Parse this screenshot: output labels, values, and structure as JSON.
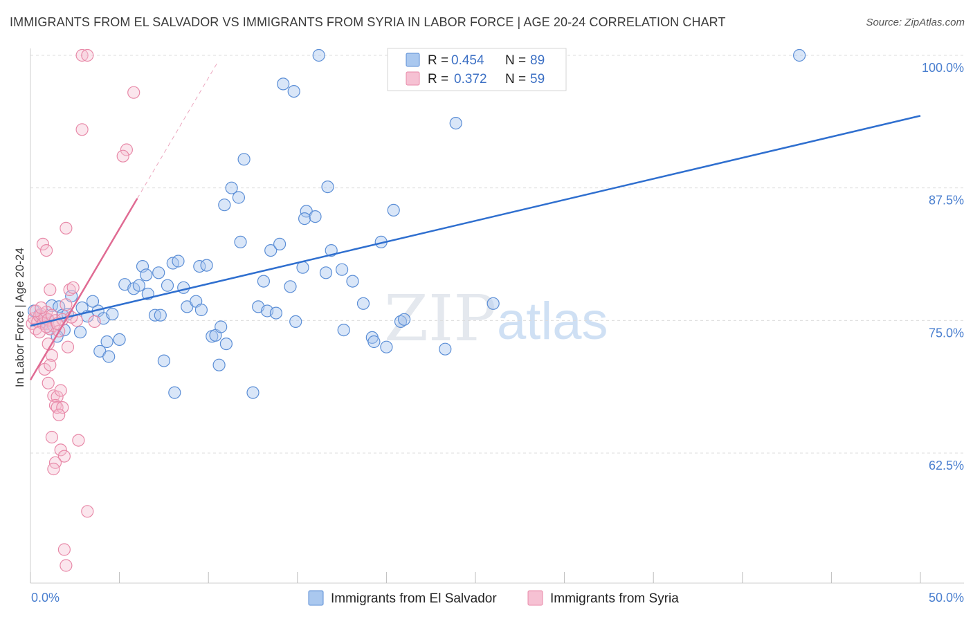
{
  "header": {
    "title": "IMMIGRANTS FROM EL SALVADOR VS IMMIGRANTS FROM SYRIA IN LABOR FORCE | AGE 20-24 CORRELATION CHART",
    "source": "Source: ZipAtlas.com"
  },
  "watermark": {
    "zip": "ZIP",
    "atlas": "atlas"
  },
  "colors": {
    "blue": "#5b8ed6",
    "blue_fill": "#aac8ef",
    "blue_line": "#2f6fcf",
    "pink": "#e889a8",
    "pink_fill": "#f6c1d3",
    "pink_line": "#e06b93",
    "grid": "#d9d9d9",
    "axis_text": "#4a7fcf"
  },
  "legend": {
    "rows": [
      {
        "r_label": "R =",
        "r_value": "0.454",
        "n_label": "N =",
        "n_value": "89"
      },
      {
        "r_label": "R =",
        "r_value": "0.372",
        "n_label": "N =",
        "n_value": "59"
      }
    ]
  },
  "chart_data": {
    "type": "scatter",
    "title": "IMMIGRANTS FROM EL SALVADOR VS IMMIGRANTS FROM SYRIA IN LABOR FORCE | AGE 20-24 CORRELATION CHART",
    "xlabel": "",
    "ylabel": "In Labor Force | Age 20-24",
    "xlim": [
      0,
      50
    ],
    "ylim": [
      50,
      101
    ],
    "x_tick_labels": [
      "0.0%",
      "50.0%"
    ],
    "y_ticks": [
      62.5,
      75.0,
      87.5,
      100.0
    ],
    "y_tick_labels": [
      "62.5%",
      "75.0%",
      "87.5%",
      "100.0%"
    ],
    "grid": true,
    "series": [
      {
        "name": "Immigrants from El Salvador",
        "color": "#5b8ed6",
        "R": 0.454,
        "N": 89,
        "trend": {
          "x": [
            0,
            50
          ],
          "y": [
            74.5,
            94.3
          ]
        },
        "points": [
          [
            0.2,
            75.9
          ],
          [
            0.5,
            75.5
          ],
          [
            0.7,
            74.9
          ],
          [
            0.9,
            74.7
          ],
          [
            1.2,
            76.4
          ],
          [
            1.6,
            76.3
          ],
          [
            1.8,
            75.5
          ],
          [
            2.3,
            77.3
          ],
          [
            0.6,
            75.2
          ],
          [
            1.1,
            74.2
          ],
          [
            1.9,
            74.1
          ],
          [
            2.9,
            76.2
          ],
          [
            3.2,
            75.4
          ],
          [
            3.8,
            75.9
          ],
          [
            4.1,
            75.2
          ],
          [
            4.6,
            75.6
          ],
          [
            4.3,
            73.0
          ],
          [
            3.9,
            72.1
          ],
          [
            4.4,
            71.6
          ],
          [
            5.0,
            73.2
          ],
          [
            2.8,
            73.9
          ],
          [
            1.5,
            73.5
          ],
          [
            3.5,
            76.8
          ],
          [
            5.3,
            78.4
          ],
          [
            5.8,
            78.0
          ],
          [
            6.1,
            78.3
          ],
          [
            6.3,
            80.1
          ],
          [
            6.5,
            79.3
          ],
          [
            6.6,
            77.5
          ],
          [
            7.0,
            75.5
          ],
          [
            7.2,
            79.5
          ],
          [
            7.3,
            75.5
          ],
          [
            7.7,
            78.3
          ],
          [
            8.0,
            80.4
          ],
          [
            8.3,
            80.6
          ],
          [
            8.6,
            78.1
          ],
          [
            8.8,
            76.3
          ],
          [
            9.3,
            76.8
          ],
          [
            9.5,
            80.1
          ],
          [
            9.6,
            76.0
          ],
          [
            9.9,
            80.2
          ],
          [
            10.2,
            73.5
          ],
          [
            10.4,
            73.6
          ],
          [
            10.7,
            74.4
          ],
          [
            11.0,
            72.8
          ],
          [
            10.6,
            70.8
          ],
          [
            7.5,
            71.2
          ],
          [
            8.1,
            68.2
          ],
          [
            10.9,
            85.9
          ],
          [
            11.3,
            87.5
          ],
          [
            11.7,
            86.6
          ],
          [
            11.8,
            82.4
          ],
          [
            12.0,
            90.2
          ],
          [
            12.5,
            68.2
          ],
          [
            12.8,
            76.3
          ],
          [
            13.1,
            78.7
          ],
          [
            13.3,
            75.9
          ],
          [
            13.5,
            81.6
          ],
          [
            13.8,
            75.7
          ],
          [
            14.0,
            82.2
          ],
          [
            14.2,
            97.3
          ],
          [
            14.6,
            78.2
          ],
          [
            14.8,
            96.6
          ],
          [
            14.9,
            74.9
          ],
          [
            15.3,
            80.0
          ],
          [
            15.5,
            85.3
          ],
          [
            15.4,
            84.6
          ],
          [
            16.0,
            84.8
          ],
          [
            16.2,
            100.0
          ],
          [
            16.6,
            79.5
          ],
          [
            16.7,
            87.6
          ],
          [
            16.9,
            81.6
          ],
          [
            17.5,
            79.8
          ],
          [
            17.6,
            74.1
          ],
          [
            18.1,
            78.7
          ],
          [
            18.7,
            76.6
          ],
          [
            19.2,
            73.4
          ],
          [
            19.3,
            73.0
          ],
          [
            19.7,
            82.4
          ],
          [
            20.0,
            72.5
          ],
          [
            20.4,
            85.4
          ],
          [
            20.8,
            74.9
          ],
          [
            21.0,
            75.1
          ],
          [
            23.3,
            72.3
          ],
          [
            23.9,
            93.6
          ],
          [
            26.0,
            76.6
          ],
          [
            43.2,
            100.0
          ],
          [
            1.0,
            75.0
          ],
          [
            2.1,
            75.6
          ]
        ]
      },
      {
        "name": "Immigrants from Syria",
        "color": "#e889a8",
        "R": 0.372,
        "N": 59,
        "trend": {
          "x": [
            0,
            6.0
          ],
          "y": [
            69.4,
            86.5
          ]
        },
        "trend_extension": {
          "x": [
            6.0,
            10.5
          ],
          "y": [
            86.5,
            99.3
          ]
        },
        "points": [
          [
            0.1,
            74.7
          ],
          [
            0.2,
            75.2
          ],
          [
            0.3,
            74.2
          ],
          [
            0.4,
            74.9
          ],
          [
            0.5,
            75.4
          ],
          [
            0.6,
            75.6
          ],
          [
            0.7,
            74.7
          ],
          [
            0.8,
            75.3
          ],
          [
            0.9,
            75.8
          ],
          [
            1.0,
            75.1
          ],
          [
            1.1,
            74.2
          ],
          [
            1.2,
            75.5
          ],
          [
            1.3,
            74.5
          ],
          [
            1.4,
            75.0
          ],
          [
            0.5,
            73.9
          ],
          [
            0.9,
            74.4
          ],
          [
            1.6,
            74.0
          ],
          [
            1.8,
            75.1
          ],
          [
            2.0,
            76.5
          ],
          [
            2.2,
            77.9
          ],
          [
            1.1,
            77.9
          ],
          [
            2.4,
            78.1
          ],
          [
            2.6,
            75.0
          ],
          [
            3.6,
            74.9
          ],
          [
            0.7,
            82.2
          ],
          [
            0.9,
            81.6
          ],
          [
            2.0,
            83.7
          ],
          [
            1.0,
            72.8
          ],
          [
            1.2,
            71.7
          ],
          [
            0.8,
            70.4
          ],
          [
            1.1,
            70.8
          ],
          [
            2.1,
            72.5
          ],
          [
            1.0,
            69.1
          ],
          [
            1.3,
            67.9
          ],
          [
            1.5,
            67.8
          ],
          [
            1.4,
            67.0
          ],
          [
            1.5,
            66.8
          ],
          [
            1.7,
            68.4
          ],
          [
            1.8,
            66.8
          ],
          [
            1.6,
            66.1
          ],
          [
            1.2,
            64.0
          ],
          [
            1.7,
            62.8
          ],
          [
            1.9,
            62.2
          ],
          [
            1.4,
            61.6
          ],
          [
            1.3,
            61.0
          ],
          [
            2.7,
            63.7
          ],
          [
            3.2,
            57.0
          ],
          [
            1.9,
            53.4
          ],
          [
            2.0,
            51.9
          ],
          [
            2.9,
            100.0
          ],
          [
            3.2,
            100.0
          ],
          [
            5.8,
            96.5
          ],
          [
            2.9,
            93.0
          ],
          [
            5.4,
            91.1
          ],
          [
            5.2,
            90.5
          ],
          [
            0.3,
            75.9
          ],
          [
            0.6,
            76.2
          ],
          [
            1.5,
            74.7
          ],
          [
            2.3,
            75.3
          ]
        ]
      }
    ]
  },
  "bottom_legend": {
    "items": [
      {
        "label": "Immigrants from El Salvador"
      },
      {
        "label": "Immigrants from Syria"
      }
    ]
  }
}
